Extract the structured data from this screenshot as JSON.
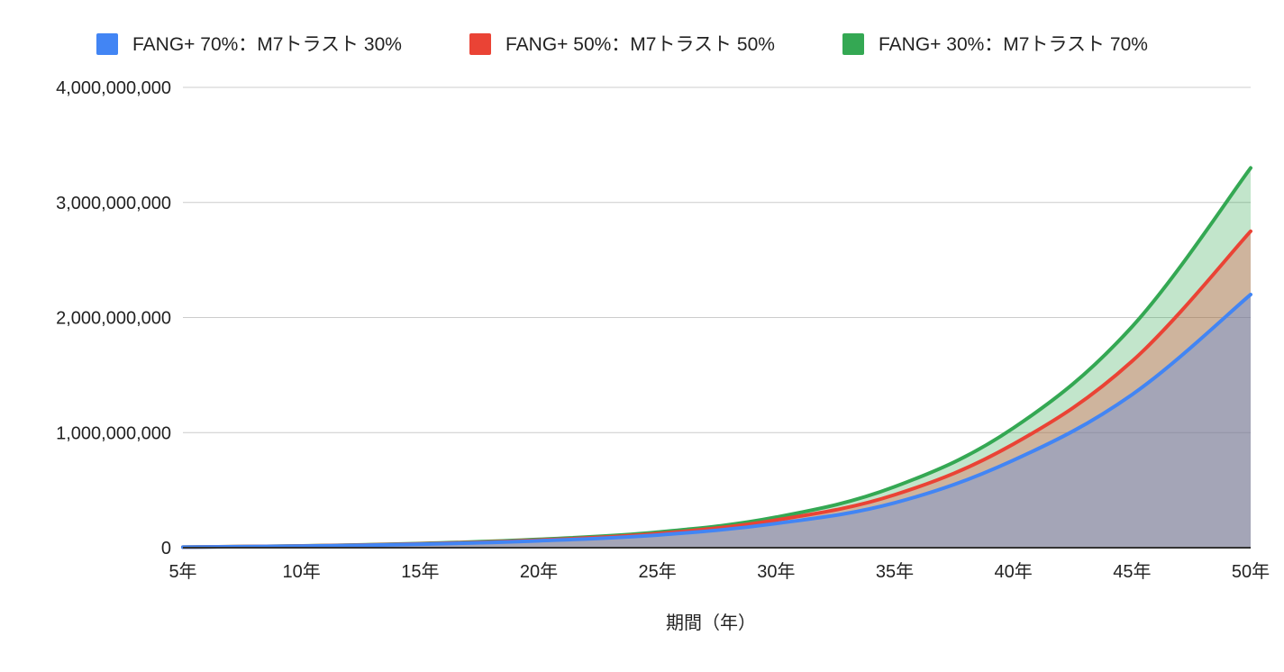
{
  "chart_data": {
    "type": "area",
    "title": "",
    "xlabel": "期間（年）",
    "ylabel": "",
    "x": [
      "5年",
      "10年",
      "15年",
      "20年",
      "25年",
      "30年",
      "35年",
      "40年",
      "45年",
      "50年"
    ],
    "ylim": [
      0,
      4000000000
    ],
    "yticks": [
      "0",
      "1,000,000,000",
      "2,000,000,000",
      "3,000,000,000",
      "4,000,000,000"
    ],
    "grid": true,
    "legend_position": "top",
    "series": [
      {
        "name": "FANG+ 70%：M7トラスト 30%",
        "color": "#4285f4",
        "values": [
          5000000,
          14000000,
          30000000,
          60000000,
          110000000,
          210000000,
          390000000,
          760000000,
          1330000000,
          2200000000
        ]
      },
      {
        "name": "FANG+ 50%：M7トラスト 50%",
        "color": "#ea4335",
        "values": [
          5000000,
          15000000,
          33000000,
          66000000,
          122000000,
          240000000,
          460000000,
          900000000,
          1620000000,
          2750000000
        ]
      },
      {
        "name": "FANG+ 30%：M7トラスト 70%",
        "color": "#34a853",
        "values": [
          5000000,
          16000000,
          36000000,
          72000000,
          135000000,
          265000000,
          530000000,
          1040000000,
          1920000000,
          3300000000
        ]
      }
    ]
  }
}
